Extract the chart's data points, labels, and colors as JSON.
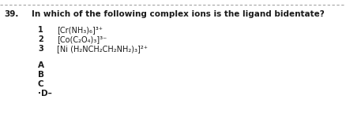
{
  "question_number": "39.",
  "question_text": "In which of the following complex ions is the ligand bidentate?",
  "item1_num": "1",
  "item1_formula": "[Cr(NH₃)₆]³⁺",
  "item2_num": "2",
  "item2_formula": "[Co(C₂O₄)₃]³⁻",
  "item3_num": "3",
  "item3_formula": "[Ni (H₂NCH₂CH₂NH₂)₃]²⁺",
  "option_A": "A",
  "option_B": "B",
  "option_C": "C",
  "option_D": "·D–",
  "bg_color": "#ffffff",
  "text_color": "#1a1a1a",
  "line_color": "#888888",
  "qnum_fontsize": 7.5,
  "qtxt_fontsize": 7.5,
  "item_num_fontsize": 7.0,
  "item_formula_fontsize": 7.0,
  "option_fontsize": 7.5
}
